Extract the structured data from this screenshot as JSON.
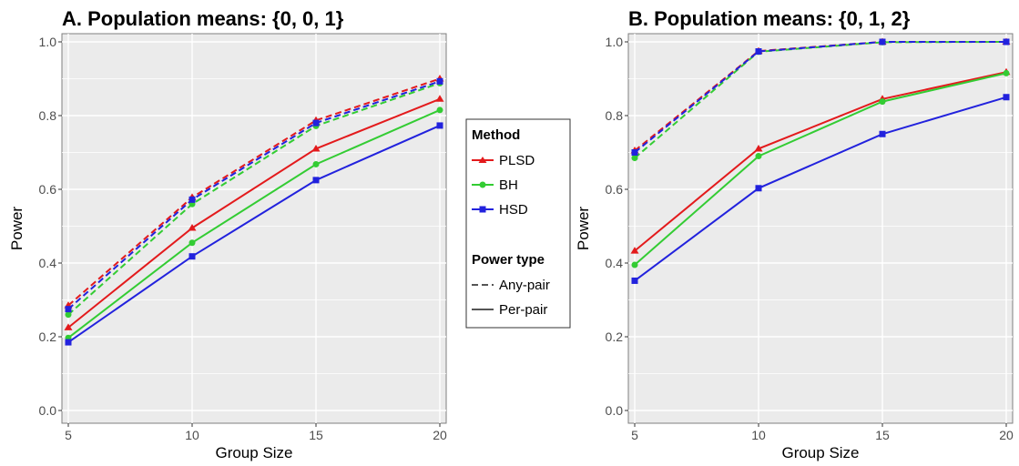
{
  "chart_data": [
    {
      "type": "line",
      "title": "A.  Population means: {0, 0, 1}",
      "xlabel": "Group Size",
      "ylabel": "Power",
      "x": [
        5,
        10,
        15,
        20
      ],
      "xlim": [
        5,
        20
      ],
      "ylim": [
        0,
        1
      ],
      "xticks": [
        "5",
        "10",
        "15",
        "20"
      ],
      "yticks": [
        "0.0",
        "0.2",
        "0.4",
        "0.6",
        "0.8",
        "1.0"
      ],
      "grid": true,
      "series": [
        {
          "name": "PLSD",
          "power_type": "Any-pair",
          "color": "#e31a1c",
          "values": [
            0.285,
            0.578,
            0.787,
            0.9
          ]
        },
        {
          "name": "BH",
          "power_type": "Any-pair",
          "color": "#33cc33",
          "values": [
            0.26,
            0.56,
            0.772,
            0.888
          ]
        },
        {
          "name": "HSD",
          "power_type": "Any-pair",
          "color": "#2222dd",
          "values": [
            0.275,
            0.572,
            0.78,
            0.893
          ]
        },
        {
          "name": "PLSD",
          "power_type": "Per-pair",
          "color": "#e31a1c",
          "values": [
            0.225,
            0.495,
            0.71,
            0.845
          ]
        },
        {
          "name": "BH",
          "power_type": "Per-pair",
          "color": "#33cc33",
          "values": [
            0.197,
            0.455,
            0.668,
            0.815
          ]
        },
        {
          "name": "HSD",
          "power_type": "Per-pair",
          "color": "#2222dd",
          "values": [
            0.185,
            0.418,
            0.625,
            0.773
          ]
        }
      ]
    },
    {
      "type": "line",
      "title": "B.  Population means: {0, 1, 2}",
      "xlabel": "Group Size",
      "ylabel": "Power",
      "x": [
        5,
        10,
        15,
        20
      ],
      "xlim": [
        5,
        20
      ],
      "ylim": [
        0,
        1
      ],
      "xticks": [
        "5",
        "10",
        "15",
        "20"
      ],
      "yticks": [
        "0.0",
        "0.2",
        "0.4",
        "0.6",
        "0.8",
        "1.0"
      ],
      "grid": true,
      "series": [
        {
          "name": "PLSD",
          "power_type": "Any-pair",
          "color": "#e31a1c",
          "values": [
            0.705,
            0.975,
            1.0,
            1.0
          ]
        },
        {
          "name": "BH",
          "power_type": "Any-pair",
          "color": "#33cc33",
          "values": [
            0.685,
            0.973,
            0.999,
            1.0
          ]
        },
        {
          "name": "HSD",
          "power_type": "Any-pair",
          "color": "#2222dd",
          "values": [
            0.7,
            0.974,
            1.0,
            1.0
          ]
        },
        {
          "name": "PLSD",
          "power_type": "Per-pair",
          "color": "#e31a1c",
          "values": [
            0.433,
            0.71,
            0.845,
            0.918
          ]
        },
        {
          "name": "BH",
          "power_type": "Per-pair",
          "color": "#33cc33",
          "values": [
            0.395,
            0.69,
            0.838,
            0.915
          ]
        },
        {
          "name": "HSD",
          "power_type": "Per-pair",
          "color": "#2222dd",
          "values": [
            0.352,
            0.603,
            0.75,
            0.85
          ]
        }
      ]
    }
  ],
  "legend": {
    "placement": "center",
    "method_title": "Method",
    "methods": [
      {
        "name": "PLSD",
        "color": "#e31a1c",
        "marker": "triangle"
      },
      {
        "name": "BH",
        "color": "#33cc33",
        "marker": "circle"
      },
      {
        "name": "HSD",
        "color": "#2222dd",
        "marker": "square"
      }
    ],
    "power_type_title": "Power type",
    "power_types": [
      {
        "name": "Any-pair",
        "dash": "dashed"
      },
      {
        "name": "Per-pair",
        "dash": "solid"
      }
    ]
  },
  "colors": {
    "panel_background": "#ebebeb",
    "grid": "#ffffff",
    "panel_border": "#7f7f7f",
    "legend_line": "#555555"
  }
}
